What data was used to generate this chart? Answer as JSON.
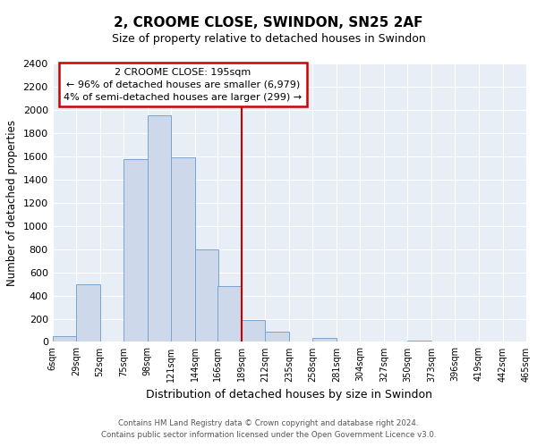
{
  "title": "2, CROOME CLOSE, SWINDON, SN25 2AF",
  "subtitle": "Size of property relative to detached houses in Swindon",
  "xlabel": "Distribution of detached houses by size in Swindon",
  "ylabel": "Number of detached properties",
  "bar_left_edges": [
    6,
    29,
    52,
    75,
    98,
    121,
    144,
    166,
    189,
    212,
    235,
    258,
    281,
    304,
    327,
    350,
    373,
    396,
    419,
    442
  ],
  "bar_heights": [
    50,
    500,
    0,
    1575,
    1950,
    1590,
    800,
    480,
    190,
    90,
    0,
    35,
    0,
    0,
    0,
    15,
    0,
    0,
    0,
    0
  ],
  "bin_width": 23,
  "tick_labels": [
    "6sqm",
    "29sqm",
    "52sqm",
    "75sqm",
    "98sqm",
    "121sqm",
    "144sqm",
    "166sqm",
    "189sqm",
    "212sqm",
    "235sqm",
    "258sqm",
    "281sqm",
    "304sqm",
    "327sqm",
    "350sqm",
    "373sqm",
    "396sqm",
    "419sqm",
    "442sqm",
    "465sqm"
  ],
  "tick_positions": [
    6,
    29,
    52,
    75,
    98,
    121,
    144,
    166,
    189,
    212,
    235,
    258,
    281,
    304,
    327,
    350,
    373,
    396,
    419,
    442,
    465
  ],
  "bar_color": "#cdd9ea",
  "bar_edge_color": "#7ba3cc",
  "vline_x": 189,
  "vline_color": "#cc0000",
  "ylim": [
    0,
    2400
  ],
  "yticks": [
    0,
    200,
    400,
    600,
    800,
    1000,
    1200,
    1400,
    1600,
    1800,
    2000,
    2200,
    2400
  ],
  "annotation_title": "2 CROOME CLOSE: 195sqm",
  "annotation_line1": "← 96% of detached houses are smaller (6,979)",
  "annotation_line2": "4% of semi-detached houses are larger (299) →",
  "footnote1": "Contains HM Land Registry data © Crown copyright and database right 2024.",
  "footnote2": "Contains public sector information licensed under the Open Government Licence v3.0.",
  "plot_bg_color": "#e8eef5",
  "fig_bg_color": "#ffffff",
  "grid_color": "#ffffff"
}
